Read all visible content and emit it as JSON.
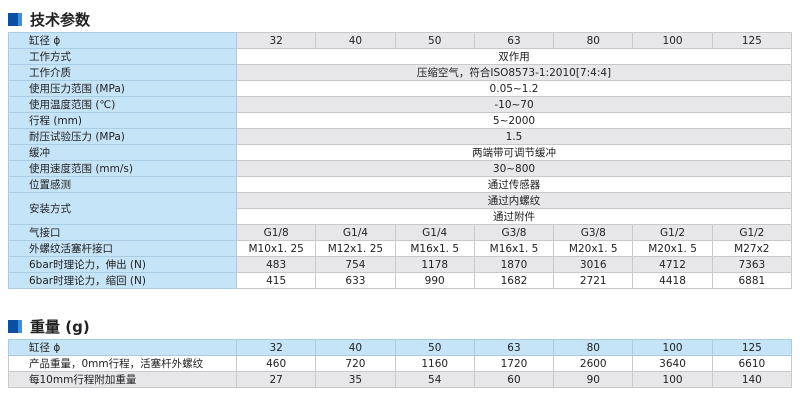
{
  "section1": {
    "title": "技术参数"
  },
  "section2": {
    "title": "重量 (g)"
  },
  "specs": {
    "bore_label": "缸径 ϕ",
    "bores": [
      "32",
      "40",
      "50",
      "63",
      "80",
      "100",
      "125"
    ],
    "merged_rows": [
      {
        "label": "工作方式",
        "value": "双作用"
      },
      {
        "label": "工作介质",
        "value": "压缩空气，符合ISO8573-1:2010[7:4:4]"
      },
      {
        "label": "使用压力范围 (MPa)",
        "value": "0.05~1.2"
      },
      {
        "label": "使用温度范围 (℃)",
        "value": "-10~70"
      },
      {
        "label": "行程 (mm)",
        "value": "5~2000"
      },
      {
        "label": "耐压试验压力 (MPa)",
        "value": "1.5"
      },
      {
        "label": "缓冲",
        "value": "两端带可调节缓冲"
      },
      {
        "label": "使用速度范围 (mm/s)",
        "value": "30~800"
      },
      {
        "label": "位置感测",
        "value": "通过传感器"
      }
    ],
    "mounting": {
      "label": "安装方式",
      "values": [
        "通过内螺纹",
        "通过附件"
      ]
    },
    "per_bore_rows": [
      {
        "label": "气接口",
        "values": [
          "G1/8",
          "G1/4",
          "G1/4",
          "G3/8",
          "G3/8",
          "G1/2",
          "G1/2"
        ]
      },
      {
        "label": "外螺纹活塞杆接口",
        "values": [
          "M10x1. 25",
          "M12x1. 25",
          "M16x1. 5",
          "M16x1. 5",
          "M20x1. 5",
          "M20x1. 5",
          "M27x2"
        ]
      },
      {
        "label": "6bar时理论力，伸出 (N)",
        "values": [
          "483",
          "754",
          "1178",
          "1870",
          "3016",
          "4712",
          "7363"
        ]
      },
      {
        "label": "6bar时理论力，缩回 (N)",
        "values": [
          "415",
          "633",
          "990",
          "1682",
          "2721",
          "4418",
          "6881"
        ]
      }
    ]
  },
  "weight": {
    "bore_label": "缸径 ϕ",
    "bores": [
      "32",
      "40",
      "50",
      "63",
      "80",
      "100",
      "125"
    ],
    "rows": [
      {
        "label": "产品重量，0mm行程，活塞杆外螺纹",
        "values": [
          "460",
          "720",
          "1160",
          "1720",
          "2600",
          "3640",
          "6610"
        ]
      },
      {
        "label": "每10mm行程附加重量",
        "values": [
          "27",
          "35",
          "54",
          "60",
          "90",
          "100",
          "140"
        ]
      }
    ]
  },
  "colors": {
    "label_bg": "#c6e4f7",
    "alt_row": "#e7e7ea",
    "icon": "#0b4fa0"
  }
}
